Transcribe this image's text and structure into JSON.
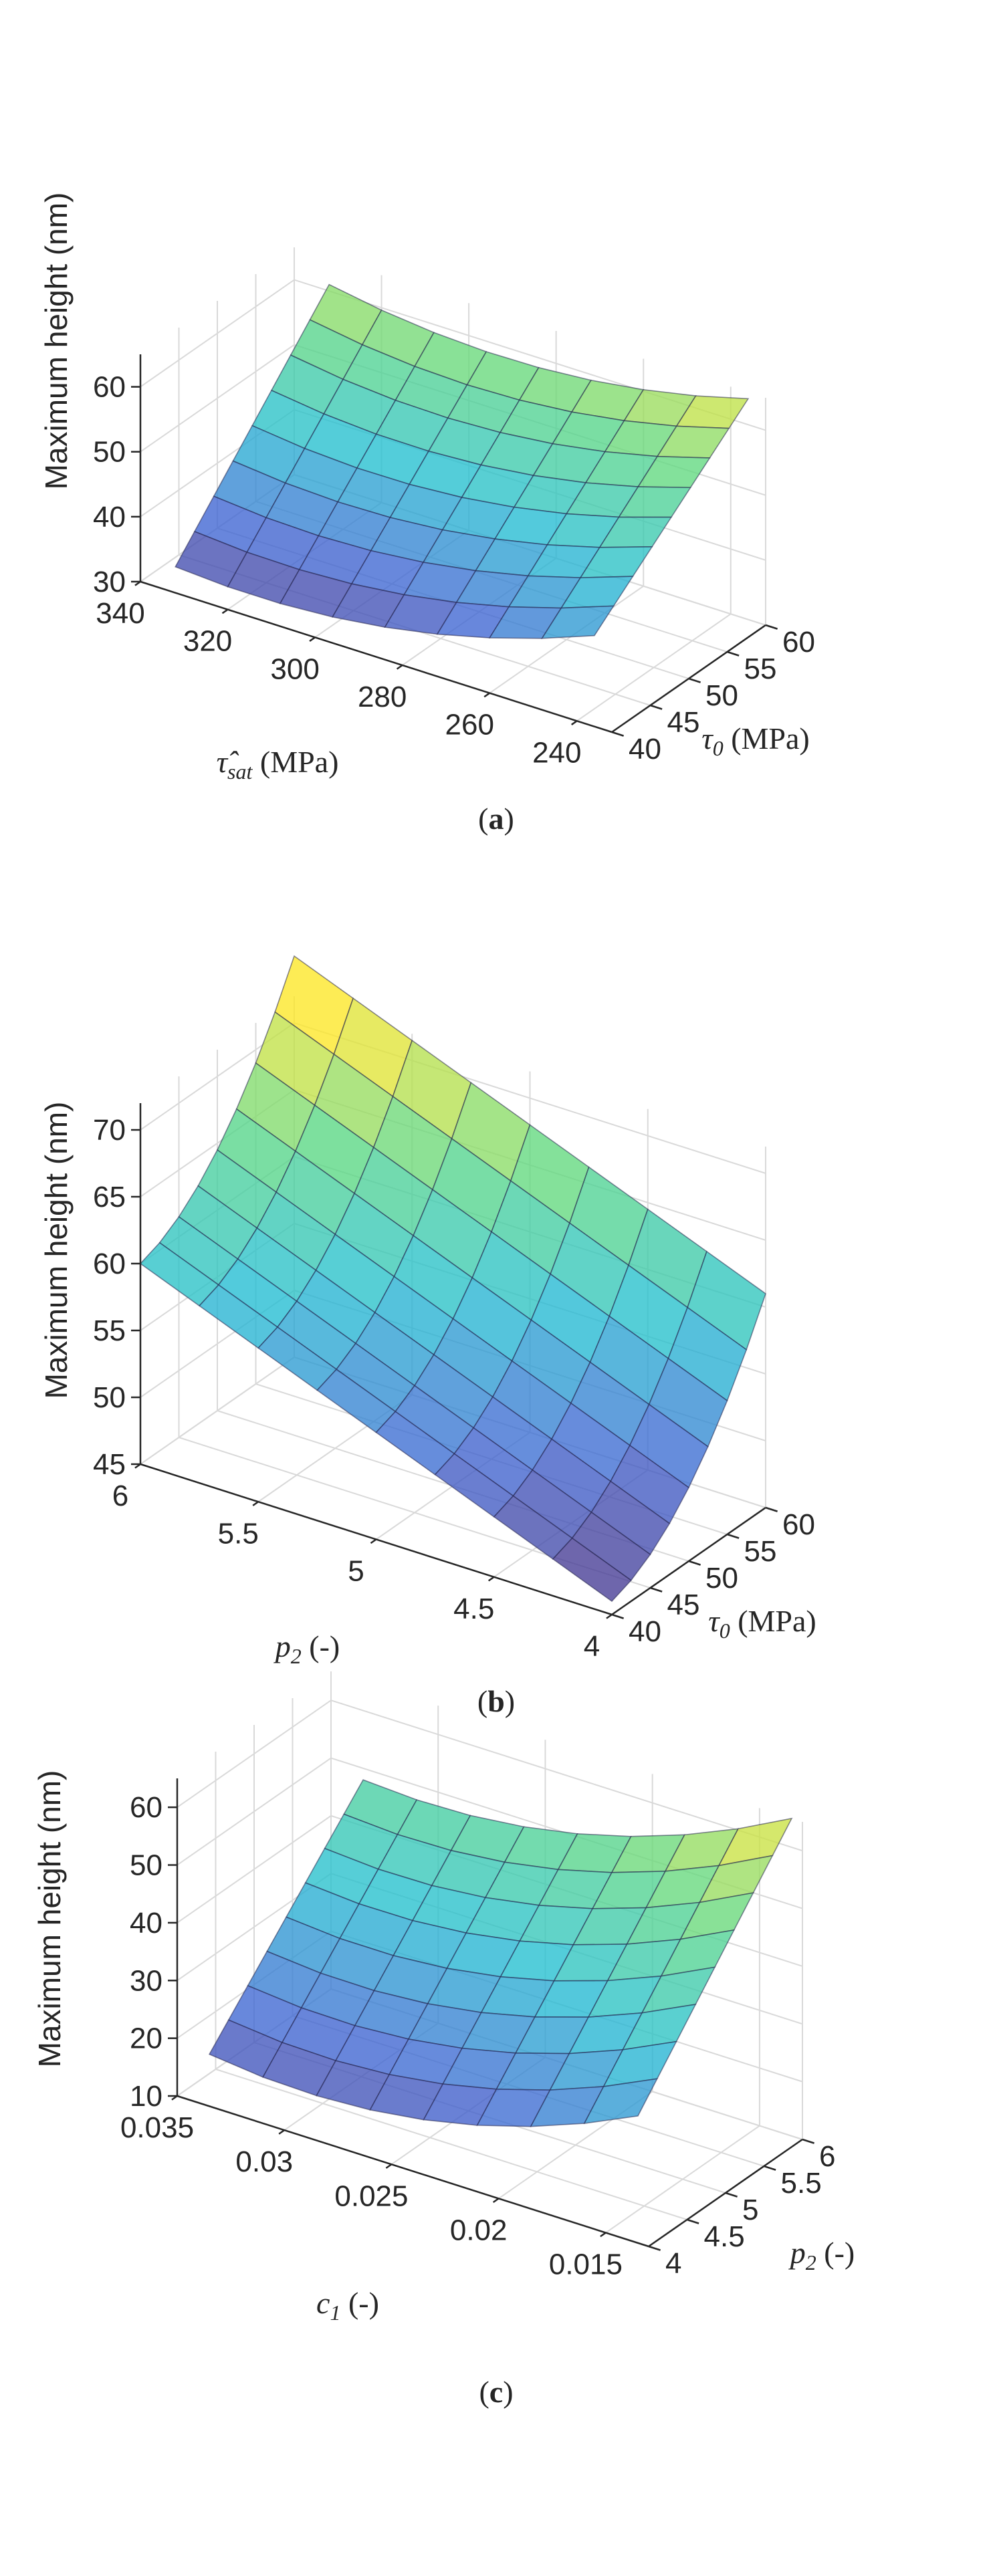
{
  "colors": {
    "low": "#440154",
    "mid": "#21918c",
    "high": "#fde725",
    "edge": "#2b2b55"
  },
  "chart_data": [
    {
      "type": "surface",
      "panel": "(a)",
      "zlabel": "Maximum height (nm)",
      "xlabel_main": "τ̂",
      "xlabel_sub": "sat",
      "xlabel_tail": " (MPa)",
      "ylabel_main": "τ",
      "ylabel_sub": "0",
      "ylabel_tail": " (MPa)",
      "x_ticks": [
        "340",
        "320",
        "300",
        "280",
        "260",
        "240"
      ],
      "x_range": [
        340,
        232
      ],
      "y_ticks": [
        "40",
        "45",
        "50",
        "55",
        "60"
      ],
      "y_range": [
        40,
        60
      ],
      "z_ticks": [
        "30",
        "40",
        "50",
        "60"
      ],
      "z_range": [
        30,
        65
      ],
      "grid": true,
      "x": [
        332,
        320,
        308,
        296,
        284,
        272,
        260,
        248,
        236
      ],
      "y": [
        40,
        42.5,
        45,
        47.5,
        50,
        52.5,
        55,
        57.5,
        60
      ],
      "z_corners": {
        "x0y0": 34,
        "x1y0": 44,
        "x0y1": 61,
        "x1y1": 64
      },
      "curvature": [
        -4,
        0
      ]
    },
    {
      "type": "surface",
      "panel": "(b)",
      "zlabel": "Maximum height (nm)",
      "xlabel_main": "p",
      "xlabel_sub": "2",
      "xlabel_tail": " (-)",
      "ylabel_main": "τ",
      "ylabel_sub": "0",
      "ylabel_tail": " (MPa)",
      "x_ticks": [
        "6",
        "5.5",
        "5",
        "4.5",
        "4"
      ],
      "x_range": [
        6,
        4
      ],
      "y_ticks": [
        "40",
        "45",
        "50",
        "55",
        "60"
      ],
      "y_range": [
        40,
        60
      ],
      "z_ticks": [
        "45",
        "50",
        "55",
        "60",
        "65",
        "70"
      ],
      "z_range": [
        45,
        72
      ],
      "grid": true,
      "x": [
        6,
        5.75,
        5.5,
        5.25,
        5,
        4.75,
        4.5,
        4.25,
        4
      ],
      "y": [
        40,
        42.5,
        45,
        47.5,
        50,
        52.5,
        55,
        57.5,
        60
      ],
      "z_corners": {
        "x0y0": 60,
        "x1y0": 46,
        "x0y1": 75,
        "x1y1": 61
      },
      "curvature": [
        0,
        -3
      ]
    },
    {
      "type": "surface",
      "panel": "(c)",
      "zlabel": "Maximum height (nm)",
      "xlabel_main": "c",
      "xlabel_sub": "1",
      "xlabel_tail": " (-)",
      "ylabel_main": "p",
      "ylabel_sub": "2",
      "ylabel_tail": " (-)",
      "x_ticks": [
        "0.035",
        "0.03",
        "0.025",
        "0.02",
        "0.015"
      ],
      "x_range": [
        0.035,
        0.013
      ],
      "y_ticks": [
        "4",
        "4.5",
        "5",
        "5.5",
        "6"
      ],
      "y_range": [
        4,
        6
      ],
      "z_ticks": [
        "10",
        "20",
        "30",
        "40",
        "50",
        "60"
      ],
      "z_range": [
        10,
        65
      ],
      "grid": true,
      "x": [
        0.0335,
        0.031,
        0.0285,
        0.026,
        0.0235,
        0.021,
        0.0185,
        0.016,
        0.0135
      ],
      "y": [
        4,
        4.25,
        4.5,
        4.75,
        5,
        5.25,
        5.5,
        5.75,
        6
      ],
      "z_corners": {
        "x0y0": 19,
        "x1y0": 32,
        "x0y1": 48,
        "x1y1": 65
      },
      "curvature": [
        -6,
        0
      ]
    }
  ]
}
